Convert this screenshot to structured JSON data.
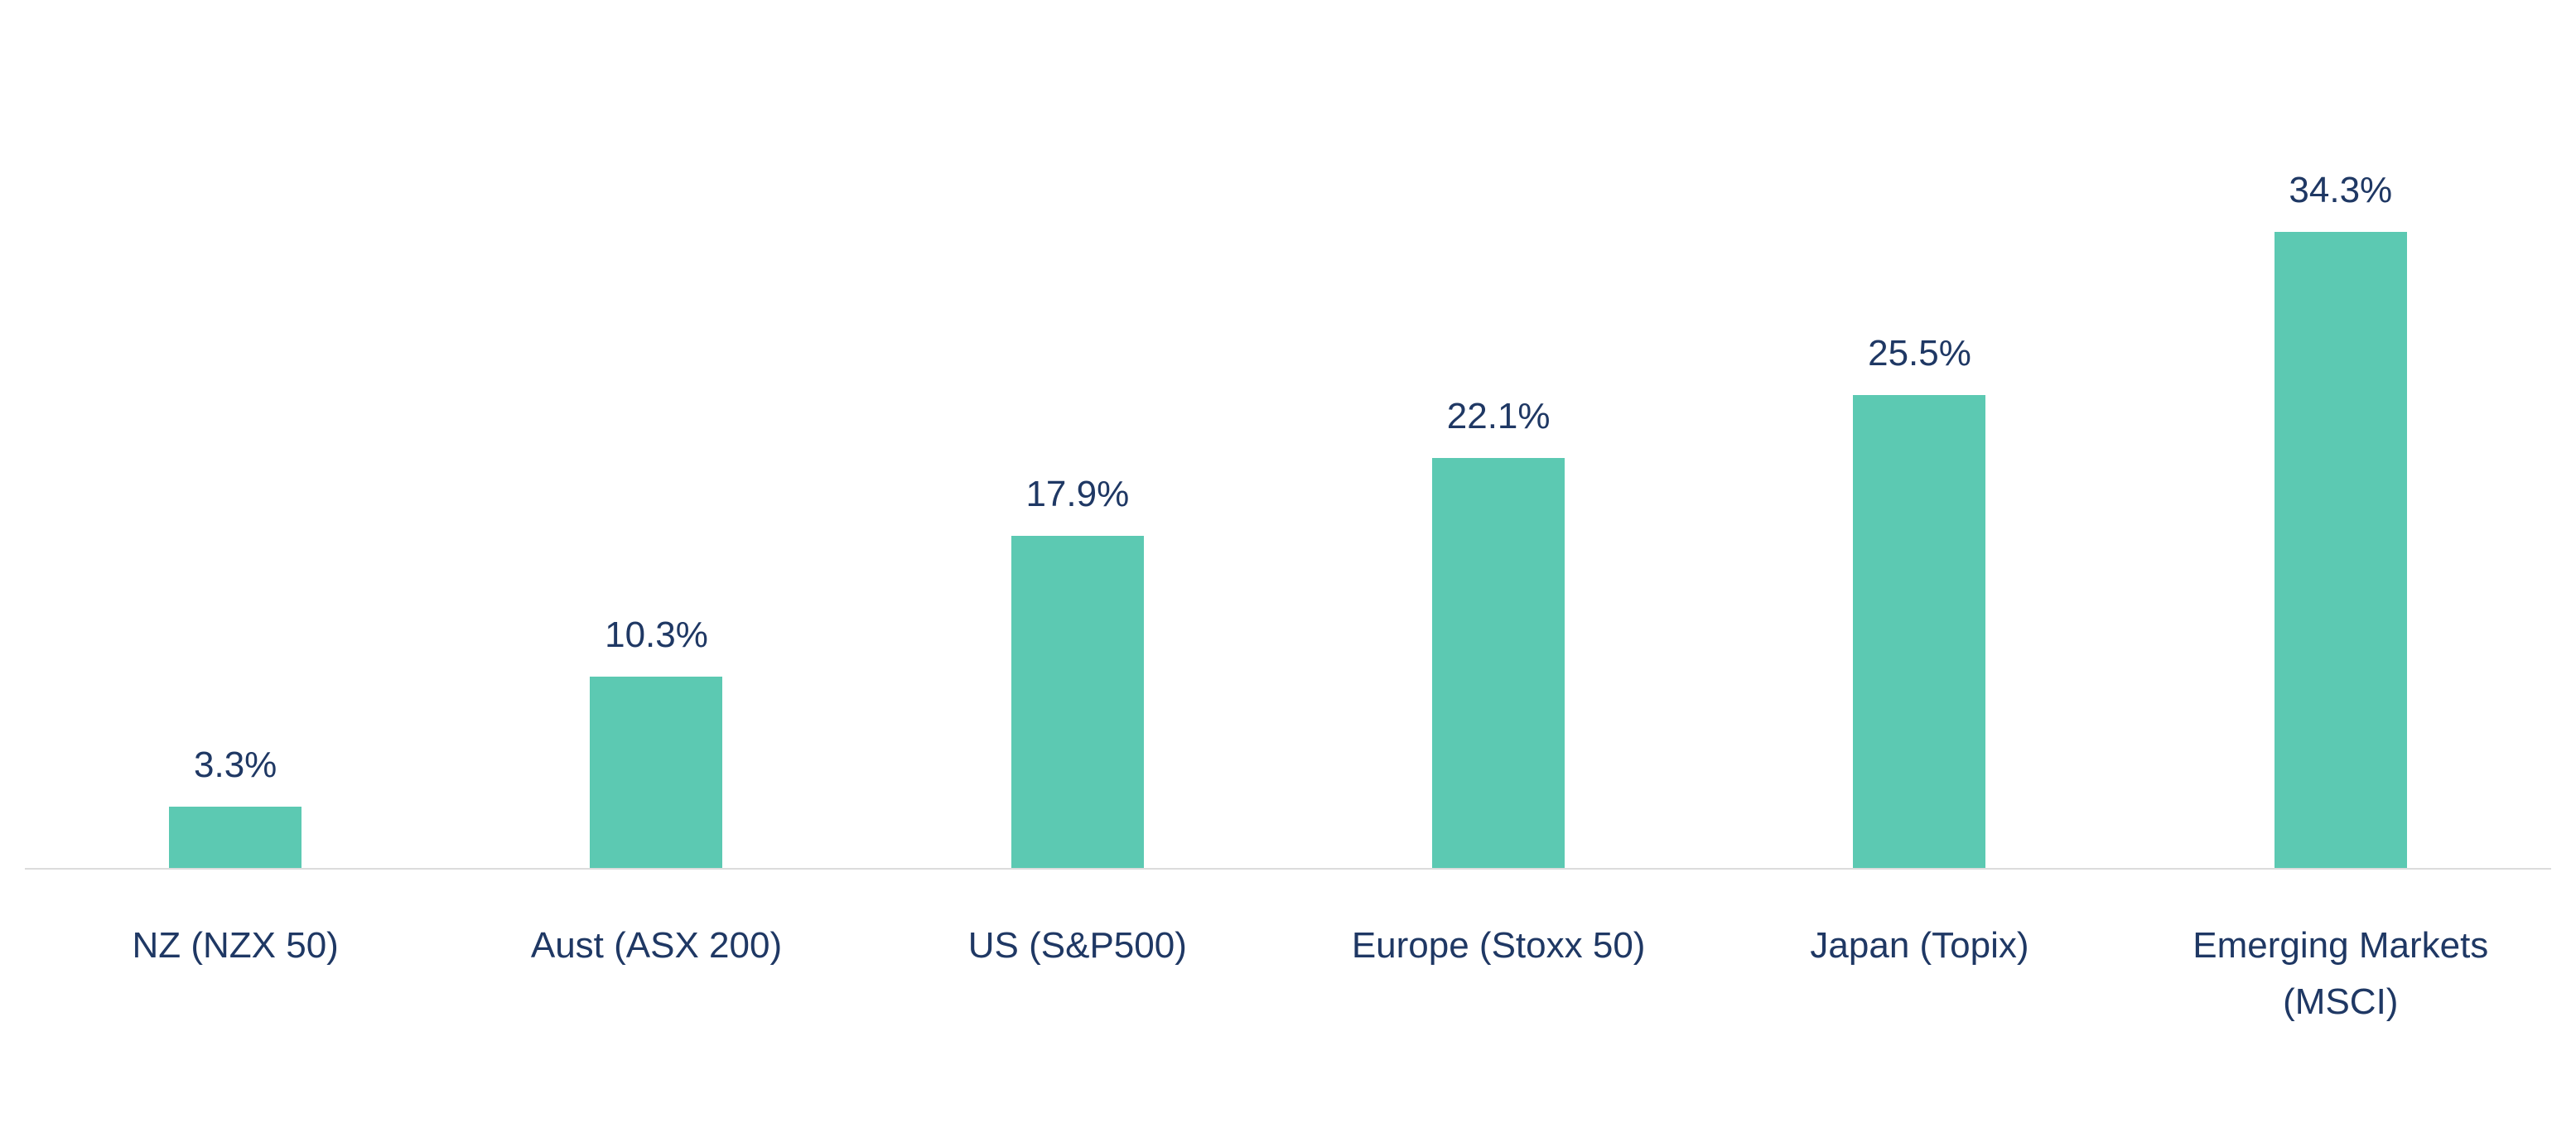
{
  "chart_data": {
    "type": "bar",
    "categories": [
      "NZ (NZX 50)",
      "Aust (ASX 200)",
      "US (S&P500)",
      "Europe (Stoxx 50)",
      "Japan (Topix)",
      "Emerging Markets (MSCI)"
    ],
    "values": [
      3.3,
      10.3,
      17.9,
      22.1,
      25.5,
      34.3
    ],
    "value_labels": [
      "3.3%",
      "10.3%",
      "17.9%",
      "22.1%",
      "25.5%",
      "34.3%"
    ],
    "ylim": [
      0,
      45
    ],
    "grid": false,
    "legend": "none",
    "bar_color": "#5cc9b2",
    "label_color": "#1f3864",
    "baseline_color": "#dcdcdc"
  }
}
